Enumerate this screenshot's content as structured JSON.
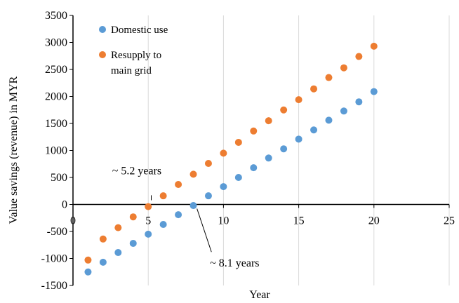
{
  "chart_data": {
    "type": "scatter",
    "title": "",
    "xlabel": "Year",
    "ylabel": "Value savings (revenue) in MYR",
    "xlim": [
      0,
      25
    ],
    "ylim": [
      -1500,
      3500
    ],
    "x_ticks": [
      0,
      5,
      10,
      15,
      20,
      25
    ],
    "y_ticks": [
      -1500,
      -1000,
      -500,
      0,
      500,
      1000,
      1500,
      2000,
      2500,
      3000,
      3500
    ],
    "grid": "vertical",
    "legend_position": "top-left",
    "series": [
      {
        "name": "Domestic use",
        "color": "#5b9bd5",
        "x": [
          1,
          2,
          3,
          4,
          5,
          6,
          7,
          8,
          9,
          10,
          11,
          12,
          13,
          14,
          15,
          16,
          17,
          18,
          19,
          20
        ],
        "y": [
          -1250,
          -1070,
          -890,
          -720,
          -550,
          -370,
          -190,
          -20,
          160,
          330,
          500,
          680,
          860,
          1030,
          1210,
          1380,
          1560,
          1730,
          1900,
          2090
        ]
      },
      {
        "name": "Resupply to\nmain grid",
        "color": "#ed7d31",
        "x": [
          1,
          2,
          3,
          4,
          5,
          6,
          7,
          8,
          9,
          10,
          11,
          12,
          13,
          14,
          15,
          16,
          17,
          18,
          19,
          20
        ],
        "y": [
          -1030,
          -640,
          -430,
          -230,
          -40,
          160,
          370,
          560,
          760,
          950,
          1150,
          1360,
          1550,
          1750,
          1940,
          2140,
          2350,
          2530,
          2740,
          2930
        ]
      }
    ],
    "annotations": [
      {
        "text": "~ 5.2 years",
        "x": 5.2,
        "y": 0,
        "anchor_text_at": [
          5.0,
          650
        ]
      },
      {
        "text": "~ 8.1 years",
        "x": 8.1,
        "y": 0,
        "anchor_text_at": [
          10.5,
          -1100
        ]
      }
    ]
  }
}
